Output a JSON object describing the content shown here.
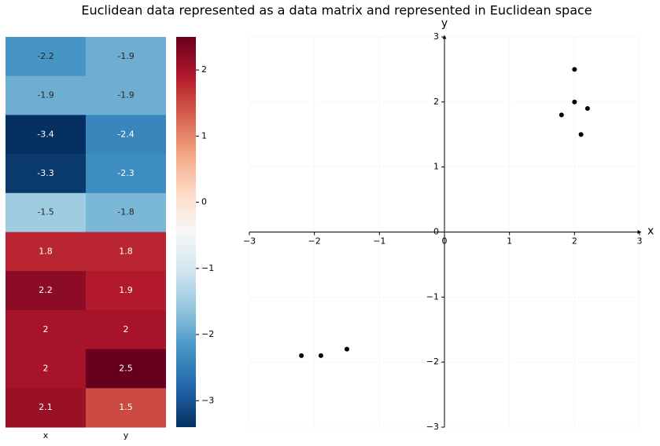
{
  "chart_data": [
    {
      "type": "heatmap",
      "title": "Euclidean data represented as a data matrix and represented in Euclidean space",
      "columns": [
        "x",
        "y"
      ],
      "values": [
        [
          -2.2,
          -1.9
        ],
        [
          -1.9,
          -1.9
        ],
        [
          -3.4,
          -2.4
        ],
        [
          -3.3,
          -2.3
        ],
        [
          -1.5,
          -1.8
        ],
        [
          1.8,
          1.8
        ],
        [
          2.2,
          1.9
        ],
        [
          2,
          2
        ],
        [
          2,
          2.5
        ],
        [
          2.1,
          1.5
        ]
      ],
      "colormap": "RdBu_r",
      "clim": [
        -3.4,
        2.5
      ],
      "cticks": [
        {
          "value": -3,
          "label": "−3"
        },
        {
          "value": -2,
          "label": "−2"
        },
        {
          "value": -1,
          "label": "−1"
        },
        0,
        1,
        2
      ]
    },
    {
      "type": "scatter",
      "xlabel": "x",
      "ylabel": "y",
      "color": "#000000",
      "grid": true,
      "x": [
        -2.2,
        -1.9,
        -1.5,
        1.8,
        2.2,
        2,
        2,
        2.1
      ],
      "y": [
        -1.9,
        -1.9,
        -1.8,
        1.8,
        1.9,
        2,
        2.5,
        1.5
      ],
      "xlim": [
        -3,
        3
      ],
      "ylim": [
        -3,
        3
      ],
      "xticks": [
        {
          "value": -3,
          "label": "−3"
        },
        {
          "value": -2,
          "label": "−2"
        },
        {
          "value": -1,
          "label": "−1"
        },
        0,
        1,
        2,
        3
      ],
      "yticks": [
        {
          "value": -3,
          "label": "−3"
        },
        {
          "value": -2,
          "label": "−2"
        },
        {
          "value": -1,
          "label": "−1"
        },
        0,
        1,
        2,
        3
      ]
    }
  ]
}
